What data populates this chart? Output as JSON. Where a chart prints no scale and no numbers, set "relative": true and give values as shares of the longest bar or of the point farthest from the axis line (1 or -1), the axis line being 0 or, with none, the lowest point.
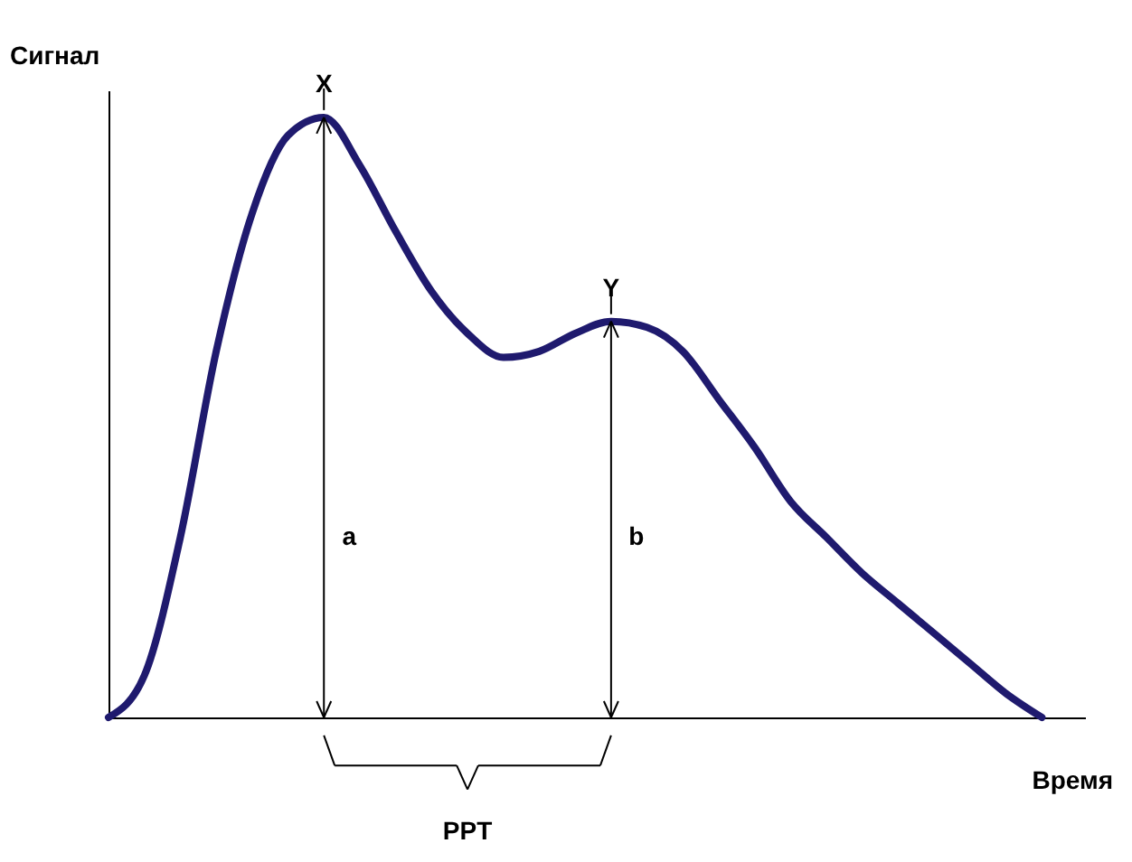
{
  "chart_data": {
    "type": "line",
    "relative": true,
    "xlabel": "Время",
    "ylabel": "Сигнал",
    "categories": [
      null,
      null,
      null,
      null,
      null,
      null,
      null,
      null,
      null,
      null,
      null,
      null,
      null,
      null,
      null,
      null,
      null,
      null,
      null,
      null,
      null,
      null,
      null,
      null,
      null,
      null,
      null
    ],
    "series": [
      {
        "color": "#1f1a6e",
        "values": [
          0,
          0.07,
          0.3,
          0.61,
          0.84,
          0.97,
          1.0,
          0.92,
          0.81,
          0.71,
          0.64,
          0.6,
          0.61,
          0.64,
          0.66,
          0.65,
          0.61,
          0.53,
          0.45,
          0.36,
          0.3,
          0.24,
          0.19,
          0.14,
          0.09,
          0.04,
          0
        ]
      }
    ],
    "annotations": [
      "X",
      "Y",
      "a",
      "b",
      "PPT"
    ],
    "grid": false,
    "marker": "none",
    "line_style": "solid"
  }
}
